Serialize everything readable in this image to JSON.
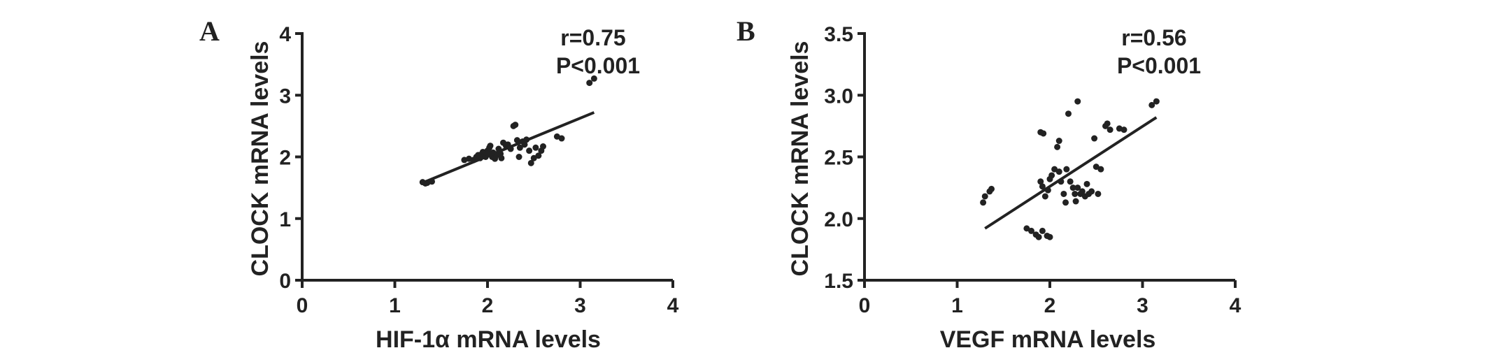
{
  "chart_data": [
    {
      "type": "scatter",
      "panel_label": "A",
      "xlabel": "HIF-1α  mRNA levels",
      "ylabel": "CLOCK mRNA levels",
      "xlim": [
        0,
        4
      ],
      "ylim": [
        0,
        4
      ],
      "xticks": [
        0,
        1,
        2,
        3,
        4
      ],
      "yticks": [
        0,
        1,
        2,
        3,
        4
      ],
      "tick_labels_x": [
        "0",
        "1",
        "2",
        "3",
        "4"
      ],
      "tick_labels_y": [
        "0",
        "1",
        "2",
        "3",
        "4"
      ],
      "annotations": [
        "r=0.75",
        "P<0.001"
      ],
      "fit_line": [
        [
          1.3,
          1.58
        ],
        [
          3.15,
          2.72
        ]
      ],
      "points": [
        [
          1.3,
          1.59
        ],
        [
          1.33,
          1.57
        ],
        [
          1.35,
          1.58
        ],
        [
          1.4,
          1.6
        ],
        [
          1.75,
          1.95
        ],
        [
          1.8,
          1.97
        ],
        [
          1.85,
          1.95
        ],
        [
          1.88,
          2.0
        ],
        [
          1.9,
          2.03
        ],
        [
          1.92,
          1.98
        ],
        [
          1.94,
          2.05
        ],
        [
          1.95,
          2.08
        ],
        [
          1.97,
          2.03
        ],
        [
          1.98,
          2.0
        ],
        [
          2.0,
          2.1
        ],
        [
          2.0,
          2.05
        ],
        [
          2.02,
          2.15
        ],
        [
          2.03,
          2.18
        ],
        [
          2.05,
          2.0
        ],
        [
          2.06,
          2.07
        ],
        [
          2.08,
          1.97
        ],
        [
          2.1,
          2.03
        ],
        [
          2.12,
          2.13
        ],
        [
          2.14,
          2.05
        ],
        [
          2.15,
          1.98
        ],
        [
          2.17,
          2.23
        ],
        [
          2.2,
          2.18
        ],
        [
          2.22,
          2.2
        ],
        [
          2.25,
          2.13
        ],
        [
          2.28,
          2.5
        ],
        [
          2.3,
          2.52
        ],
        [
          2.32,
          2.27
        ],
        [
          2.34,
          2.0
        ],
        [
          2.35,
          2.15
        ],
        [
          2.38,
          2.25
        ],
        [
          2.4,
          2.2
        ],
        [
          2.42,
          2.28
        ],
        [
          2.45,
          2.1
        ],
        [
          2.47,
          1.9
        ],
        [
          2.5,
          1.98
        ],
        [
          2.52,
          2.15
        ],
        [
          2.55,
          2.02
        ],
        [
          2.58,
          2.1
        ],
        [
          2.6,
          2.17
        ],
        [
          2.75,
          2.33
        ],
        [
          2.8,
          2.3
        ],
        [
          3.1,
          3.2
        ],
        [
          3.15,
          3.27
        ]
      ]
    },
    {
      "type": "scatter",
      "panel_label": "B",
      "xlabel": "VEGF mRNA levels",
      "ylabel": "CLOCK mRNA levels",
      "xlim": [
        0,
        4
      ],
      "ylim": [
        1.5,
        3.5
      ],
      "xticks": [
        0,
        1,
        2,
        3,
        4
      ],
      "yticks": [
        1.5,
        2.0,
        2.5,
        3.0,
        3.5
      ],
      "tick_labels_x": [
        "0",
        "1",
        "2",
        "3",
        "4"
      ],
      "tick_labels_y": [
        "1.5",
        "2.0",
        "2.5",
        "3.0",
        "3.5"
      ],
      "annotations": [
        "r=0.56",
        "P<0.001"
      ],
      "fit_line": [
        [
          1.3,
          1.92
        ],
        [
          3.15,
          2.82
        ]
      ],
      "points": [
        [
          1.28,
          2.13
        ],
        [
          1.3,
          2.18
        ],
        [
          1.35,
          2.22
        ],
        [
          1.37,
          2.24
        ],
        [
          1.75,
          1.92
        ],
        [
          1.8,
          1.9
        ],
        [
          1.85,
          1.87
        ],
        [
          1.88,
          1.85
        ],
        [
          1.92,
          1.9
        ],
        [
          1.97,
          1.86
        ],
        [
          2.0,
          1.85
        ],
        [
          1.9,
          2.7
        ],
        [
          1.93,
          2.69
        ],
        [
          1.9,
          2.3
        ],
        [
          1.92,
          2.26
        ],
        [
          1.95,
          2.18
        ],
        [
          1.98,
          2.23
        ],
        [
          2.0,
          2.32
        ],
        [
          2.02,
          2.35
        ],
        [
          2.05,
          2.4
        ],
        [
          2.08,
          2.58
        ],
        [
          2.1,
          2.63
        ],
        [
          2.1,
          2.38
        ],
        [
          2.12,
          2.3
        ],
        [
          2.15,
          2.2
        ],
        [
          2.17,
          2.13
        ],
        [
          2.18,
          2.4
        ],
        [
          2.2,
          2.85
        ],
        [
          2.22,
          2.3
        ],
        [
          2.25,
          2.25
        ],
        [
          2.27,
          2.2
        ],
        [
          2.28,
          2.14
        ],
        [
          2.3,
          2.95
        ],
        [
          2.3,
          2.25
        ],
        [
          2.33,
          2.2
        ],
        [
          2.35,
          2.22
        ],
        [
          2.38,
          2.18
        ],
        [
          2.4,
          2.28
        ],
        [
          2.42,
          2.2
        ],
        [
          2.45,
          2.22
        ],
        [
          2.48,
          2.65
        ],
        [
          2.5,
          2.42
        ],
        [
          2.52,
          2.2
        ],
        [
          2.55,
          2.4
        ],
        [
          2.6,
          2.75
        ],
        [
          2.62,
          2.77
        ],
        [
          2.65,
          2.72
        ],
        [
          2.75,
          2.73
        ],
        [
          2.8,
          2.72
        ],
        [
          3.1,
          2.92
        ],
        [
          3.15,
          2.95
        ]
      ]
    }
  ]
}
